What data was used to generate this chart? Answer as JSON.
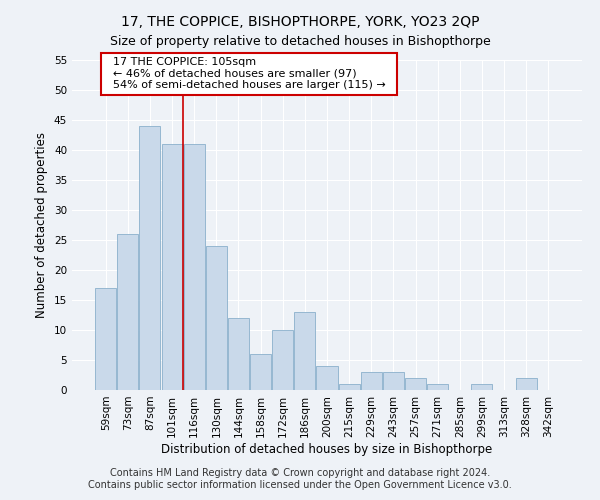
{
  "title": "17, THE COPPICE, BISHOPTHORPE, YORK, YO23 2QP",
  "subtitle": "Size of property relative to detached houses in Bishopthorpe",
  "xlabel": "Distribution of detached houses by size in Bishopthorpe",
  "ylabel": "Number of detached properties",
  "footnote1": "Contains HM Land Registry data © Crown copyright and database right 2024.",
  "footnote2": "Contains public sector information licensed under the Open Government Licence v3.0.",
  "annotation_line1": "17 THE COPPICE: 105sqm",
  "annotation_line2": "← 46% of detached houses are smaller (97)",
  "annotation_line3": "54% of semi-detached houses are larger (115) →",
  "bar_categories": [
    "59sqm",
    "73sqm",
    "87sqm",
    "101sqm",
    "116sqm",
    "130sqm",
    "144sqm",
    "158sqm",
    "172sqm",
    "186sqm",
    "200sqm",
    "215sqm",
    "229sqm",
    "243sqm",
    "257sqm",
    "271sqm",
    "285sqm",
    "299sqm",
    "313sqm",
    "328sqm",
    "342sqm"
  ],
  "bar_values": [
    17,
    26,
    44,
    41,
    41,
    24,
    12,
    6,
    10,
    13,
    4,
    1,
    3,
    3,
    2,
    1,
    0,
    1,
    0,
    2,
    0
  ],
  "bar_color": "#c9d9ea",
  "bar_edge_color": "#8ab0cc",
  "vline_color": "#cc0000",
  "vline_x_index": 3,
  "ylim": [
    0,
    55
  ],
  "yticks": [
    0,
    5,
    10,
    15,
    20,
    25,
    30,
    35,
    40,
    45,
    50,
    55
  ],
  "annotation_box_edge": "#cc0000",
  "bg_color": "#eef2f7",
  "grid_color": "#ffffff",
  "title_fontsize": 10,
  "subtitle_fontsize": 9,
  "axis_label_fontsize": 8.5,
  "tick_fontsize": 7.5,
  "annotation_fontsize": 8,
  "footnote_fontsize": 7
}
